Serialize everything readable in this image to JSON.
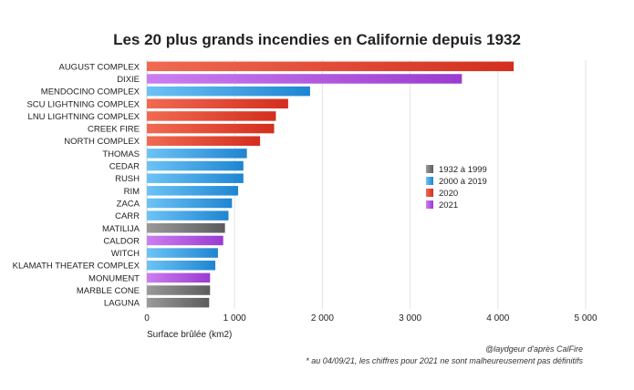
{
  "chart_data": {
    "type": "bar",
    "orientation": "horizontal",
    "title": "Les 20 plus grands incendies en Californie depuis 1932",
    "xlabel": "Surface brûlée (km2)",
    "ylabel": "",
    "xlim": [
      0,
      5000
    ],
    "xticks": [
      0,
      1000,
      2000,
      3000,
      4000,
      5000
    ],
    "xtick_labels": [
      "0",
      "1 000",
      "2 000",
      "3 000",
      "4 000",
      "5 000"
    ],
    "grid": true,
    "legend_position": "right",
    "legend": [
      {
        "label": "1932 à 1999",
        "color": "#7a7a7a"
      },
      {
        "label": "2000 à 2019",
        "color": "#2e9ae0"
      },
      {
        "label": "2020",
        "color": "#e0402e"
      },
      {
        "label": "2021",
        "color": "#a84ad8"
      }
    ],
    "bars": [
      {
        "category": "AUGUST COMPLEX",
        "value": 4180,
        "group": "2020"
      },
      {
        "category": "DIXIE",
        "value": 3590,
        "group": "2021"
      },
      {
        "category": "MENDOCINO COMPLEX",
        "value": 1860,
        "group": "2000 à 2019"
      },
      {
        "category": "SCU LIGHTNING COMPLEX",
        "value": 1610,
        "group": "2020"
      },
      {
        "category": "LNU LIGHTNING COMPLEX",
        "value": 1470,
        "group": "2020"
      },
      {
        "category": "CREEK FIRE",
        "value": 1450,
        "group": "2020"
      },
      {
        "category": "NORTH COMPLEX",
        "value": 1290,
        "group": "2020"
      },
      {
        "category": "THOMAS",
        "value": 1140,
        "group": "2000 à 2019"
      },
      {
        "category": "CEDAR",
        "value": 1100,
        "group": "2000 à 2019"
      },
      {
        "category": "RUSH",
        "value": 1100,
        "group": "2000 à 2019"
      },
      {
        "category": "RIM",
        "value": 1040,
        "group": "2000 à 2019"
      },
      {
        "category": "ZACA",
        "value": 970,
        "group": "2000 à 2019"
      },
      {
        "category": "CARR",
        "value": 930,
        "group": "2000 à 2019"
      },
      {
        "category": "MATILIJA",
        "value": 890,
        "group": "1932 à 1999"
      },
      {
        "category": "CALDOR",
        "value": 870,
        "group": "2021"
      },
      {
        "category": "WITCH",
        "value": 810,
        "group": "2000 à 2019"
      },
      {
        "category": "KLAMATH THEATER COMPLEX",
        "value": 780,
        "group": "2000 à 2019"
      },
      {
        "category": "MONUMENT",
        "value": 720,
        "group": "2021"
      },
      {
        "category": "MARBLE CONE",
        "value": 720,
        "group": "1932 à 1999"
      },
      {
        "category": "LAGUNA",
        "value": 710,
        "group": "1932 à 1999"
      }
    ],
    "credit": "@laydgeur d'après CalFire",
    "footnote": "* au 04/09/21, les chiffres pour 2021 ne sont malheureusement pas définitifs"
  }
}
